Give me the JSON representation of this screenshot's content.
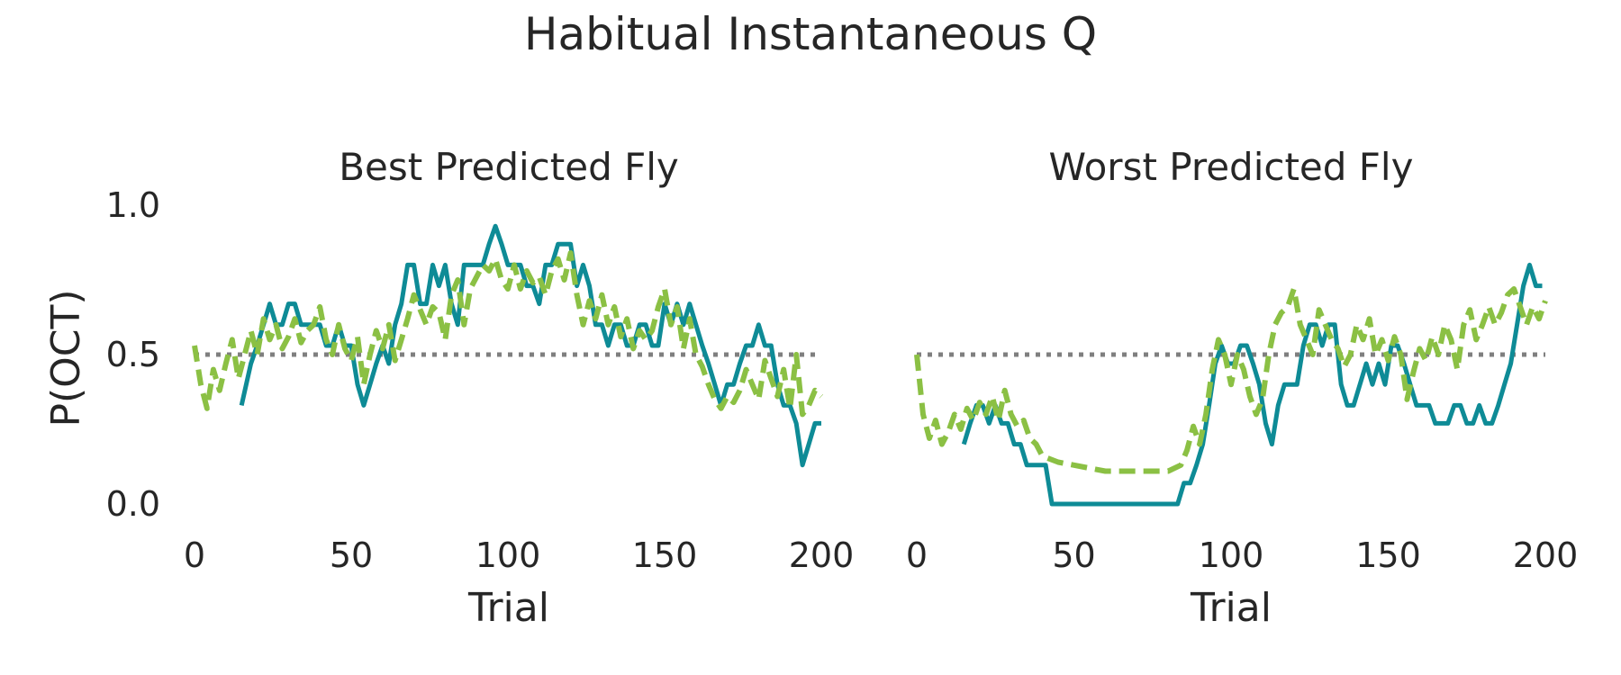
{
  "figure": {
    "title": "Habitual Instantaneous Q",
    "colors": {
      "observed": "#0E8B96",
      "model": "#8BC044",
      "reference": "#7F7F7F",
      "text": "#262626"
    }
  },
  "chart_data": [
    {
      "type": "line",
      "title": "Best Predicted Fly",
      "xlabel": "Trial",
      "ylabel": "P(OCT)",
      "xlim": [
        0,
        200
      ],
      "ylim": [
        0,
        1
      ],
      "xticks": [
        "0",
        "50",
        "100",
        "150",
        "200"
      ],
      "yticks": [
        "0.0",
        "0.5",
        "1.0"
      ],
      "grid": false,
      "reference_line": {
        "y": 0.5,
        "style": "dotted"
      },
      "series": [
        {
          "style": "solid",
          "x": [
            15,
            18,
            20,
            22,
            24,
            26,
            28,
            30,
            32,
            34,
            36,
            38,
            40,
            42,
            44,
            46,
            48,
            50,
            52,
            54,
            56,
            58,
            60,
            62,
            64,
            66,
            68,
            70,
            72,
            74,
            76,
            78,
            80,
            82,
            84,
            86,
            88,
            90,
            92,
            94,
            96,
            98,
            100,
            102,
            104,
            106,
            108,
            110,
            112,
            114,
            116,
            118,
            120,
            122,
            124,
            126,
            128,
            130,
            132,
            134,
            136,
            138,
            140,
            142,
            144,
            146,
            148,
            150,
            152,
            154,
            156,
            158,
            160,
            162,
            164,
            166,
            168,
            170,
            172,
            174,
            176,
            178,
            180,
            182,
            184,
            186,
            188,
            190,
            192,
            194,
            196,
            198,
            200
          ],
          "y": [
            0.33,
            0.47,
            0.53,
            0.6,
            0.67,
            0.6,
            0.6,
            0.67,
            0.67,
            0.6,
            0.6,
            0.6,
            0.6,
            0.53,
            0.53,
            0.6,
            0.53,
            0.53,
            0.4,
            0.33,
            0.4,
            0.47,
            0.53,
            0.47,
            0.6,
            0.67,
            0.8,
            0.8,
            0.67,
            0.67,
            0.8,
            0.73,
            0.8,
            0.67,
            0.6,
            0.8,
            0.8,
            0.8,
            0.8,
            0.87,
            0.93,
            0.87,
            0.8,
            0.8,
            0.8,
            0.73,
            0.73,
            0.67,
            0.8,
            0.8,
            0.87,
            0.87,
            0.87,
            0.73,
            0.8,
            0.73,
            0.6,
            0.6,
            0.53,
            0.6,
            0.6,
            0.53,
            0.53,
            0.6,
            0.6,
            0.53,
            0.53,
            0.67,
            0.6,
            0.67,
            0.6,
            0.67,
            0.6,
            0.53,
            0.47,
            0.4,
            0.33,
            0.4,
            0.4,
            0.47,
            0.53,
            0.53,
            0.6,
            0.53,
            0.53,
            0.4,
            0.33,
            0.33,
            0.27,
            0.13,
            0.2,
            0.27,
            0.27
          ]
        },
        {
          "style": "dashed",
          "x": [
            0,
            2,
            4,
            6,
            8,
            10,
            12,
            14,
            16,
            18,
            20,
            22,
            24,
            26,
            28,
            30,
            32,
            34,
            36,
            38,
            40,
            42,
            44,
            46,
            48,
            50,
            52,
            54,
            56,
            58,
            60,
            62,
            64,
            66,
            68,
            70,
            72,
            74,
            76,
            78,
            80,
            82,
            84,
            86,
            88,
            90,
            92,
            94,
            96,
            98,
            100,
            102,
            104,
            106,
            108,
            110,
            112,
            114,
            116,
            118,
            120,
            122,
            124,
            126,
            128,
            130,
            132,
            134,
            136,
            138,
            140,
            142,
            144,
            146,
            148,
            150,
            152,
            154,
            156,
            158,
            160,
            162,
            164,
            166,
            168,
            170,
            172,
            174,
            176,
            178,
            180,
            182,
            184,
            186,
            188,
            190,
            192,
            194,
            196,
            198,
            200
          ],
          "y": [
            0.53,
            0.4,
            0.32,
            0.45,
            0.38,
            0.47,
            0.55,
            0.42,
            0.5,
            0.58,
            0.5,
            0.62,
            0.55,
            0.6,
            0.52,
            0.56,
            0.62,
            0.54,
            0.58,
            0.6,
            0.66,
            0.55,
            0.5,
            0.6,
            0.52,
            0.48,
            0.56,
            0.4,
            0.5,
            0.58,
            0.52,
            0.6,
            0.48,
            0.55,
            0.62,
            0.7,
            0.65,
            0.6,
            0.66,
            0.64,
            0.55,
            0.7,
            0.75,
            0.6,
            0.72,
            0.76,
            0.8,
            0.78,
            0.82,
            0.75,
            0.72,
            0.8,
            0.72,
            0.78,
            0.74,
            0.76,
            0.7,
            0.78,
            0.82,
            0.75,
            0.84,
            0.7,
            0.6,
            0.68,
            0.62,
            0.7,
            0.6,
            0.66,
            0.56,
            0.62,
            0.52,
            0.58,
            0.55,
            0.58,
            0.66,
            0.72,
            0.6,
            0.66,
            0.52,
            0.62,
            0.5,
            0.46,
            0.4,
            0.35,
            0.32,
            0.36,
            0.34,
            0.38,
            0.45,
            0.4,
            0.35,
            0.48,
            0.42,
            0.36,
            0.45,
            0.32,
            0.5,
            0.3,
            0.33,
            0.38,
            0.36
          ]
        }
      ]
    },
    {
      "type": "line",
      "title": "Worst Predicted Fly",
      "xlabel": "Trial",
      "ylabel": "",
      "xlim": [
        0,
        200
      ],
      "ylim": [
        0,
        1
      ],
      "xticks": [
        "0",
        "50",
        "100",
        "150",
        "200"
      ],
      "yticks": [],
      "grid": false,
      "reference_line": {
        "y": 0.5,
        "style": "dotted"
      },
      "series": [
        {
          "style": "solid",
          "x": [
            15,
            17,
            19,
            21,
            23,
            25,
            27,
            29,
            31,
            33,
            35,
            37,
            39,
            41,
            43,
            45,
            47,
            50,
            55,
            60,
            65,
            70,
            75,
            80,
            83,
            85,
            87,
            89,
            91,
            93,
            95,
            97,
            99,
            101,
            103,
            105,
            107,
            109,
            111,
            113,
            115,
            117,
            119,
            121,
            123,
            125,
            127,
            129,
            131,
            133,
            135,
            137,
            139,
            141,
            143,
            145,
            147,
            149,
            151,
            153,
            155,
            157,
            159,
            161,
            163,
            165,
            167,
            169,
            171,
            173,
            175,
            177,
            179,
            181,
            183,
            185,
            187,
            189,
            191,
            193,
            195,
            197,
            199
          ],
          "y": [
            0.2,
            0.27,
            0.33,
            0.33,
            0.27,
            0.33,
            0.27,
            0.27,
            0.2,
            0.2,
            0.13,
            0.13,
            0.13,
            0.13,
            0.0,
            0.0,
            0.0,
            0.0,
            0.0,
            0.0,
            0.0,
            0.0,
            0.0,
            0.0,
            0.0,
            0.07,
            0.07,
            0.13,
            0.2,
            0.33,
            0.47,
            0.53,
            0.47,
            0.47,
            0.53,
            0.53,
            0.47,
            0.4,
            0.27,
            0.2,
            0.33,
            0.4,
            0.4,
            0.4,
            0.53,
            0.6,
            0.6,
            0.53,
            0.6,
            0.6,
            0.4,
            0.33,
            0.33,
            0.4,
            0.47,
            0.4,
            0.47,
            0.4,
            0.53,
            0.53,
            0.47,
            0.4,
            0.33,
            0.33,
            0.33,
            0.27,
            0.27,
            0.27,
            0.33,
            0.33,
            0.27,
            0.27,
            0.33,
            0.27,
            0.27,
            0.33,
            0.4,
            0.47,
            0.6,
            0.73,
            0.8,
            0.73,
            0.73
          ]
        },
        {
          "style": "dashed",
          "x": [
            0,
            2,
            4,
            6,
            8,
            10,
            12,
            14,
            16,
            18,
            20,
            22,
            24,
            26,
            28,
            30,
            32,
            34,
            36,
            38,
            40,
            45,
            50,
            55,
            60,
            65,
            70,
            75,
            80,
            84,
            86,
            88,
            90,
            92,
            94,
            96,
            98,
            100,
            102,
            104,
            106,
            108,
            110,
            112,
            114,
            116,
            118,
            120,
            122,
            124,
            126,
            128,
            130,
            132,
            134,
            136,
            138,
            140,
            142,
            144,
            146,
            148,
            150,
            152,
            154,
            156,
            158,
            160,
            162,
            164,
            166,
            168,
            170,
            172,
            174,
            176,
            178,
            180,
            182,
            184,
            186,
            188,
            190,
            192,
            194,
            196,
            198,
            200
          ],
          "y": [
            0.5,
            0.3,
            0.22,
            0.28,
            0.2,
            0.24,
            0.3,
            0.25,
            0.32,
            0.28,
            0.34,
            0.3,
            0.36,
            0.28,
            0.38,
            0.3,
            0.26,
            0.28,
            0.22,
            0.2,
            0.16,
            0.14,
            0.13,
            0.12,
            0.11,
            0.11,
            0.11,
            0.11,
            0.11,
            0.13,
            0.18,
            0.26,
            0.2,
            0.3,
            0.45,
            0.55,
            0.5,
            0.4,
            0.5,
            0.45,
            0.36,
            0.3,
            0.35,
            0.5,
            0.6,
            0.64,
            0.66,
            0.72,
            0.6,
            0.55,
            0.5,
            0.65,
            0.6,
            0.55,
            0.52,
            0.46,
            0.5,
            0.6,
            0.55,
            0.62,
            0.5,
            0.55,
            0.48,
            0.56,
            0.5,
            0.35,
            0.44,
            0.52,
            0.48,
            0.56,
            0.5,
            0.6,
            0.55,
            0.45,
            0.6,
            0.65,
            0.55,
            0.6,
            0.66,
            0.6,
            0.64,
            0.7,
            0.72,
            0.66,
            0.6,
            0.66,
            0.62,
            0.68
          ]
        }
      ]
    }
  ]
}
